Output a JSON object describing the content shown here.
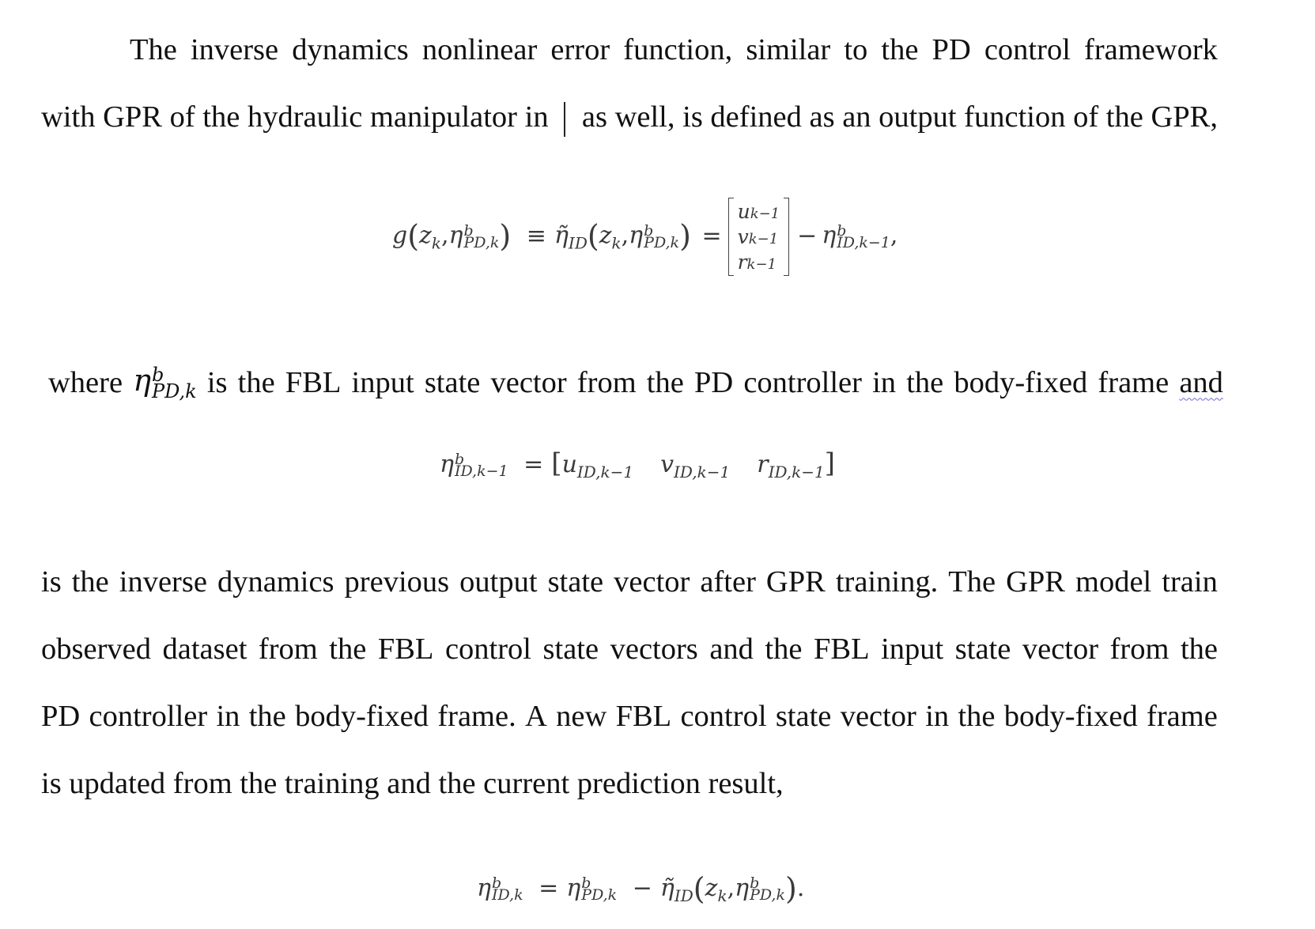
{
  "paragraph1": {
    "line1_indent_text": "The inverse dynamics nonlinear error function, similar to the PD control framework",
    "line2_part1": "with GPR of the hydraulic manipulator in",
    "line2_part2": "as well, is defined as an output function of the GPR,"
  },
  "equation1": {
    "lhs_func": "g",
    "z": "z",
    "z_sub": "k",
    "eta": "η",
    "eta_sup": "b",
    "eta_pd_sub": "PD,k",
    "equiv": "≡",
    "eta_tilde": "η̃",
    "eta_tilde_sub": "ID",
    "equals": "=",
    "matrix_rows": [
      {
        "sym": "u",
        "sub": "k−1"
      },
      {
        "sym": "v",
        "sub": "k−1"
      },
      {
        "sym": "r",
        "sub": "k−1"
      }
    ],
    "minus": "−",
    "eta_id_sub": "ID,k−1",
    "trail": ","
  },
  "paragraph2": {
    "where": "where",
    "eta_sym": "η",
    "eta_sup": "b",
    "eta_sub": "PD,k",
    "rest": "is the FBL input state vector from the PD controller in the body-fixed frame",
    "last_word": "and"
  },
  "equation2": {
    "eta": "η",
    "sup": "b",
    "sub": "ID,k−1",
    "equals": "=",
    "items": [
      {
        "sym": "u",
        "sub": "ID,k−1"
      },
      {
        "sym": "v",
        "sub": "ID,k−1"
      },
      {
        "sym": "r",
        "sub": "ID,k−1"
      }
    ]
  },
  "paragraph3": {
    "line1": "is the inverse dynamics previous output state vector after GPR training. The GPR model train",
    "line2": "observed dataset from the FBL control state vectors and the FBL input state vector from the",
    "line3": "PD controller in the body-fixed frame. A new FBL control state vector in the body-fixed frame",
    "line4": "is updated from the training and the current prediction result,"
  },
  "equation3": {
    "eta": "η",
    "sup": "b",
    "id_sub": "ID,k",
    "equals": "=",
    "pd_sub": "PD,k",
    "minus": "−",
    "eta_tilde": "η̃",
    "tilde_sub": "ID",
    "z": "z",
    "z_sub": "k",
    "trail": "."
  }
}
